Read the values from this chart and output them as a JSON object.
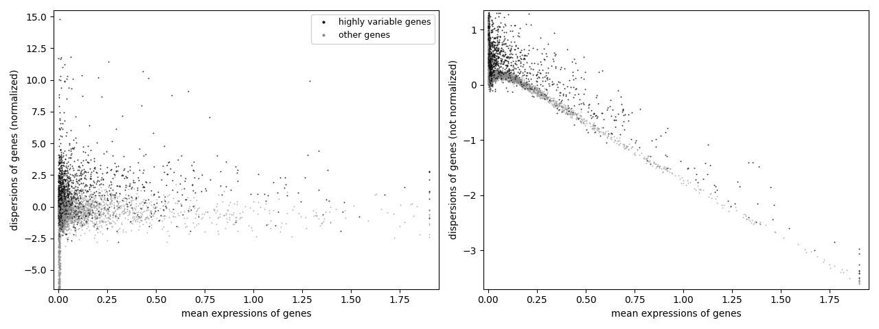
{
  "seed": 42,
  "n_other": 4000,
  "n_hv": 1000,
  "left_plot": {
    "xlabel": "mean expressions of genes",
    "ylabel": "dispersions of genes (normalized)",
    "xlim_left": -0.025,
    "xlim_right": 1.95,
    "ylim_bottom": -6.5,
    "ylim_top": 15.5
  },
  "right_plot": {
    "xlabel": "mean expressions of genes",
    "ylabel": "dispersions of genes (not normalized)",
    "xlim_left": -0.025,
    "xlim_right": 1.95,
    "ylim_bottom": -3.7,
    "ylim_top": 1.35
  },
  "hv_color": "#111111",
  "other_color": "#888888",
  "hv_label": "highly variable genes",
  "other_label": "other genes",
  "dot_size": 2,
  "figsize": [
    12.8,
    4.8
  ],
  "dpi": 100,
  "background_color": "#ffffff",
  "legend_loc": "upper right",
  "legend_fontsize": 9,
  "axis_label_fontsize": 10
}
